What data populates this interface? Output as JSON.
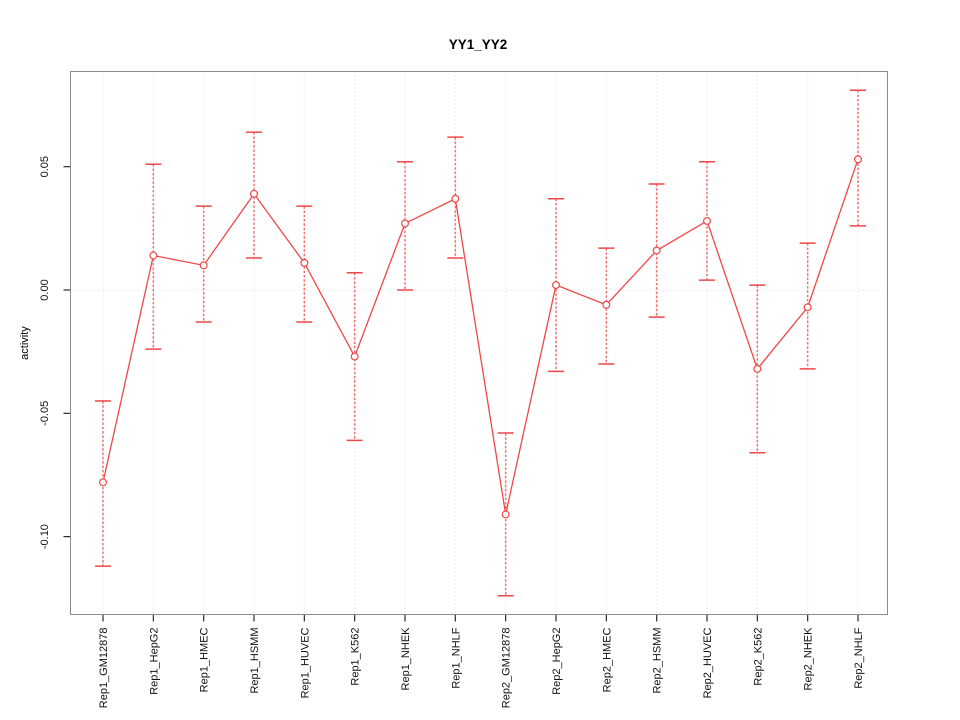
{
  "chart_data": {
    "type": "line",
    "title": "YY1_YY2",
    "xlabel": "",
    "ylabel": "activity",
    "legend": "none",
    "grid": {
      "vertical_dotted_at_each_category": true,
      "horizontal_dotted_at_zero": true
    },
    "ylim": [
      -0.13,
      0.085
    ],
    "yticks": [
      "0.05",
      "0.00",
      "-0.05",
      "-0.10"
    ],
    "ytick_values": [
      0.05,
      0.0,
      -0.05,
      -0.1
    ],
    "categories": [
      "Rep1_GM12878",
      "Rep1_HepG2",
      "Rep1_HMEC",
      "Rep1_HSMM",
      "Rep1_HUVEC",
      "Rep1_K562",
      "Rep1_NHEK",
      "Rep1_NHLF",
      "Rep2_GM12878",
      "Rep2_HepG2",
      "Rep2_HMEC",
      "Rep2_HSMM",
      "Rep2_HUVEC",
      "Rep2_K562",
      "Rep2_NHEK",
      "Rep2_NHLF"
    ],
    "series": [
      {
        "name": "activity",
        "values": [
          -0.078,
          0.014,
          0.01,
          0.039,
          0.011,
          -0.027,
          0.027,
          0.037,
          -0.091,
          0.002,
          -0.006,
          0.016,
          0.028,
          -0.032,
          -0.007,
          0.053
        ],
        "ci_low": [
          -0.112,
          -0.024,
          -0.013,
          0.013,
          -0.013,
          -0.061,
          0.0,
          0.013,
          -0.124,
          -0.033,
          -0.03,
          -0.011,
          0.004,
          -0.066,
          -0.032,
          0.026
        ],
        "ci_high": [
          -0.045,
          0.051,
          0.034,
          0.064,
          0.034,
          0.007,
          0.052,
          0.062,
          -0.058,
          0.037,
          0.017,
          0.043,
          0.052,
          0.002,
          0.019,
          0.081
        ],
        "point_style": "open-circle"
      }
    ],
    "colors": {
      "series": "#ef4747",
      "error_bar": "#f37272",
      "grid": "#dadada",
      "box": "#8c8c8c",
      "tick": "#2b2b2b",
      "text": "#111111"
    }
  }
}
